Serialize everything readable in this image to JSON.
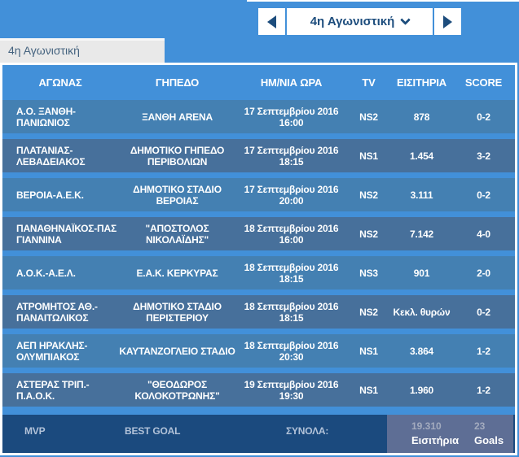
{
  "nav": {
    "dropdown_label": "4η Αγωνιστική"
  },
  "tab": {
    "label": "4η Αγωνιστική"
  },
  "table": {
    "headers": [
      "ΑΓΩΝΑΣ",
      "ΓΗΠΕΔΟ",
      "ΗΜ/ΝΙΑ ΩΡΑ",
      "TV",
      "ΕΙΣΙΤΗΡΙΑ",
      "SCORE"
    ],
    "rows": [
      {
        "match": "Α.Ο. ΞΑΝΘΗ-ΠΑΝΙΩΝΙΟΣ",
        "venue": "ΞΑΝΘΗ ARENA",
        "date": "17 Σεπτεμβρίου 2016",
        "time": "16:00",
        "tv": "NS2",
        "tickets": "878",
        "score": "0-2"
      },
      {
        "match": "ΠΛΑΤΑΝΙΑΣ-ΛΕΒΑΔΕΙΑΚΟΣ",
        "venue": "ΔΗΜΟΤΙΚΟ ΓΗΠΕΔΟ ΠΕΡΙΒΟΛΙΩΝ",
        "date": "17 Σεπτεμβρίου 2016",
        "time": "18:15",
        "tv": "NS1",
        "tickets": "1.454",
        "score": "3-2"
      },
      {
        "match": "ΒΕΡΟΙΑ-Α.Ε.Κ.",
        "venue": "ΔΗΜΟΤΙΚΟ ΣΤΑΔΙΟ ΒΕΡΟΙΑΣ",
        "date": "17 Σεπτεμβρίου 2016",
        "time": "20:00",
        "tv": "NS2",
        "tickets": "3.111",
        "score": "0-2"
      },
      {
        "match": "ΠΑΝΑΘΗΝΑΪΚΟΣ-ΠΑΣ ΓΙΑΝΝΙΝΑ",
        "venue": "\"ΑΠΟΣΤΟΛΟΣ ΝΙΚΟΛΑΪΔΗΣ\"",
        "date": "18 Σεπτεμβρίου 2016",
        "time": "16:00",
        "tv": "NS2",
        "tickets": "7.142",
        "score": "4-0"
      },
      {
        "match": "Α.Ο.Κ.-Α.Ε.Λ.",
        "venue": "Ε.Α.Κ. ΚΕΡΚΥΡΑΣ",
        "date": "18 Σεπτεμβρίου 2016",
        "time": "18:15",
        "tv": "NS3",
        "tickets": "901",
        "score": "2-0"
      },
      {
        "match": "ΑΤΡΟΜΗΤΟΣ ΑΘ.-ΠΑΝΑΙΤΩΛΙΚΟΣ",
        "venue": "ΔΗΜΟΤΙΚΟ ΣΤΑΔΙΟ ΠΕΡΙΣΤΕΡΙΟΥ",
        "date": "18 Σεπτεμβρίου 2016",
        "time": "18:15",
        "tv": "NS2",
        "tickets": "Κεκλ. θυρών",
        "score": "0-2"
      },
      {
        "match": "ΑΕΠ ΗΡΑΚΛΗΣ-ΟΛΥΜΠΙΑΚΟΣ",
        "venue": "ΚΑΥΤΑΝΖΟΓΛΕΙΟ ΣΤΑΔΙΟ",
        "date": "18 Σεπτεμβρίου 2016",
        "time": "20:30",
        "tv": "NS1",
        "tickets": "3.864",
        "score": "1-2"
      },
      {
        "match": "ΑΣΤΕΡΑΣ ΤΡΙΠ.-Π.Α.Ο.Κ.",
        "venue": "\"ΘΕΟΔΩΡΟΣ ΚΟΛΟΚΟΤΡΩΝΗΣ\"",
        "date": "19 Σεπτεμβρίου 2016",
        "time": "19:30",
        "tv": "NS1",
        "tickets": "1.960",
        "score": "1-2"
      }
    ]
  },
  "footer": {
    "mvp_label": "MVP",
    "best_goal_label": "BEST GOAL",
    "totals_label": "ΣΥΝΟΛΑ:",
    "tickets_total": "19.310",
    "tickets_label": "Εισιτήρια",
    "goals_total": "23",
    "goals_label": "Goals"
  },
  "colors": {
    "page_background": "#4290d9",
    "row_odd": "#4480b2",
    "row_even": "#47709b",
    "footer_background": "#1b4a7e",
    "summary_panel_background": "#5e6e95",
    "accent_navy": "#1d4d7d",
    "tab_background": "#e9e9e9",
    "muted_footer_text": "#b3c3d9"
  }
}
